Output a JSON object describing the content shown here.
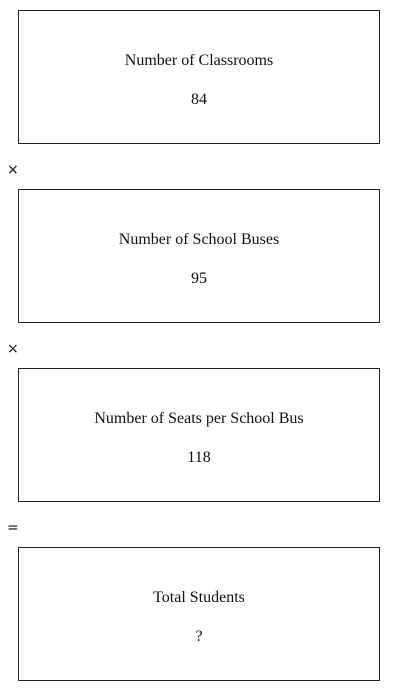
{
  "boxes": [
    {
      "label": "Number of Classrooms",
      "value": "84"
    },
    {
      "label": "Number of School Buses",
      "value": "95"
    },
    {
      "label": "Number of Seats per School Bus",
      "value": "118"
    },
    {
      "label": "Total Students",
      "value": "?"
    }
  ],
  "operators": [
    "×",
    "×",
    "="
  ]
}
